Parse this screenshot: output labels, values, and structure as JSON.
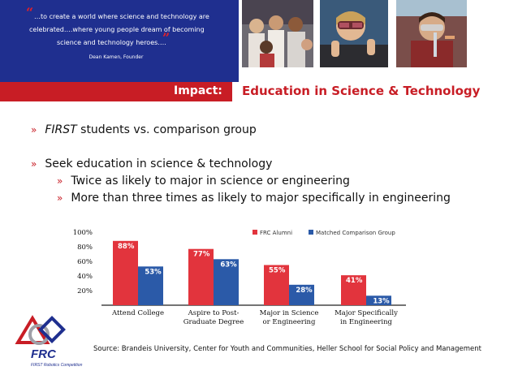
{
  "quote": {
    "line1": "…to create a world where science and technology are",
    "line2": "celebrated….where young people dream of becoming",
    "line3": "science and technology heroes….",
    "attribution": "Dean Kamen, Founder",
    "open_mark": "“",
    "close_mark": "”"
  },
  "header": {
    "impact_label": "Impact:",
    "title": "Education in Science & Technology"
  },
  "bullets": {
    "b1_emph": "FIRST",
    "b1_rest": " students vs. comparison group",
    "b2": "Seek education in science & technology",
    "sub1": "Twice as likely to major in science or engineering",
    "sub2": "More than three times as likely to major specifically in engineering",
    "marker": "»"
  },
  "chart_data": {
    "type": "bar",
    "categories": [
      [
        "Attend College"
      ],
      [
        "Aspire to Post-",
        "Graduate Degree"
      ],
      [
        "Major in Science",
        "or Engineering"
      ],
      [
        "Major Specifically",
        "in Engineering"
      ]
    ],
    "series": [
      {
        "name": "FRC Alumni",
        "values": [
          88,
          77,
          55,
          41
        ],
        "labels": [
          "88%",
          "77%",
          "55%",
          "41%"
        ],
        "color": "#e2343d"
      },
      {
        "name": "Matched Comparison Group",
        "values": [
          53,
          63,
          28,
          13
        ],
        "labels": [
          "53%",
          "63%",
          "28%",
          "13%"
        ],
        "color": "#2b5aa8"
      }
    ],
    "yticks": [
      "100%",
      "80%",
      "60%",
      "40%",
      "20%"
    ],
    "ylim": [
      0,
      100
    ],
    "legend": "top-right"
  },
  "source": "Source: Brandeis University, Center for Youth and Communities, Heller School for Social Policy and Management",
  "logo": {
    "name": "FRC",
    "subtitle": "FIRST Robotics Competition"
  },
  "colors": {
    "navy": "#1f2f8f",
    "red": "#c81d25"
  }
}
